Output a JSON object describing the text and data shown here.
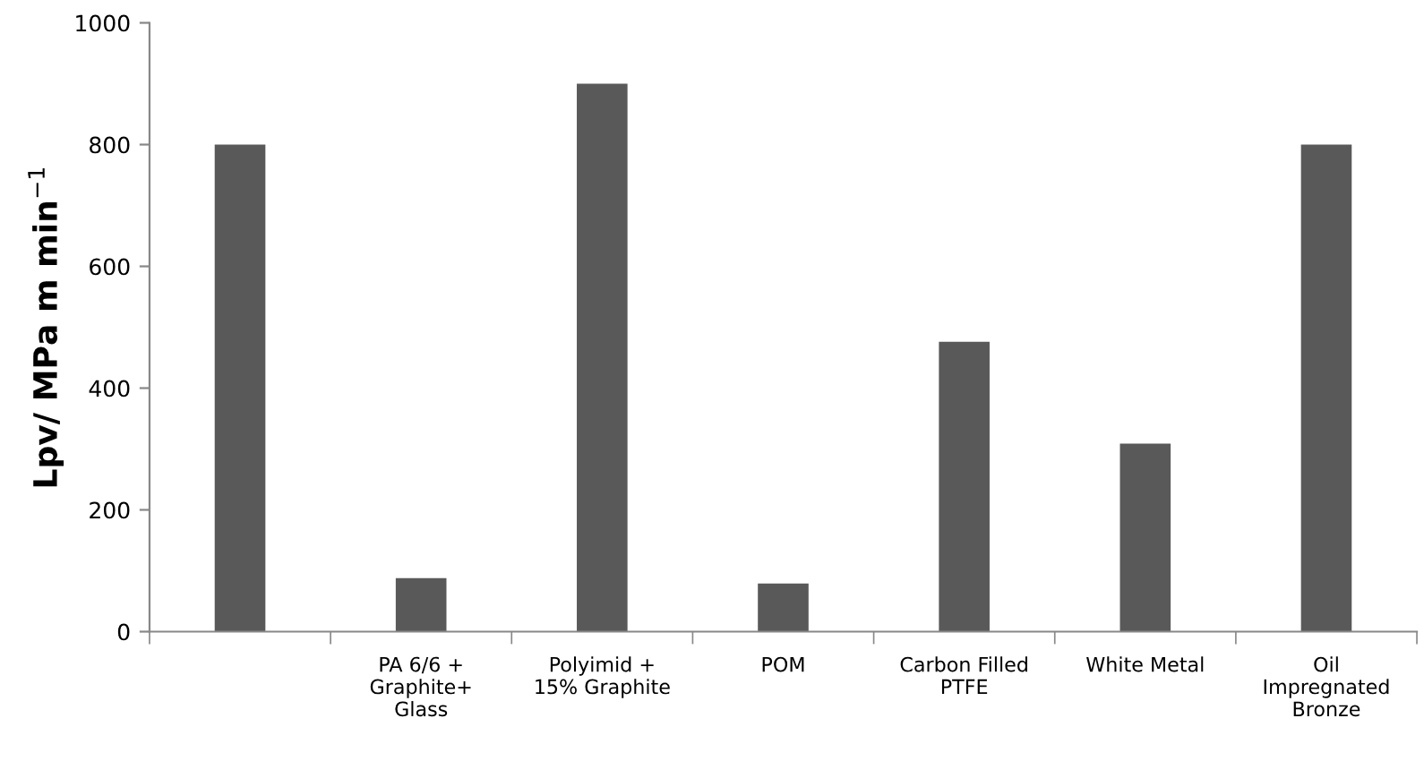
{
  "chart_data": {
    "type": "bar",
    "ylabel": "Lpv/ MPa m min$^{−1}$",
    "categories": [
      null,
      "PA 6/6 +\nGraphite+\nGlass",
      "Polyimid +\n15% Graphite",
      "POM",
      "Carbon Filled\nPTFE",
      "White Metal",
      "Oil\nImpregnated\nBronze"
    ],
    "values": [
      800,
      88,
      900,
      79,
      476,
      309,
      800
    ],
    "color": "#595959",
    "ylim": [
      0,
      1000
    ],
    "yticks": [
      0,
      200,
      400,
      600,
      800,
      1000
    ],
    "grid": false,
    "legend": false
  }
}
